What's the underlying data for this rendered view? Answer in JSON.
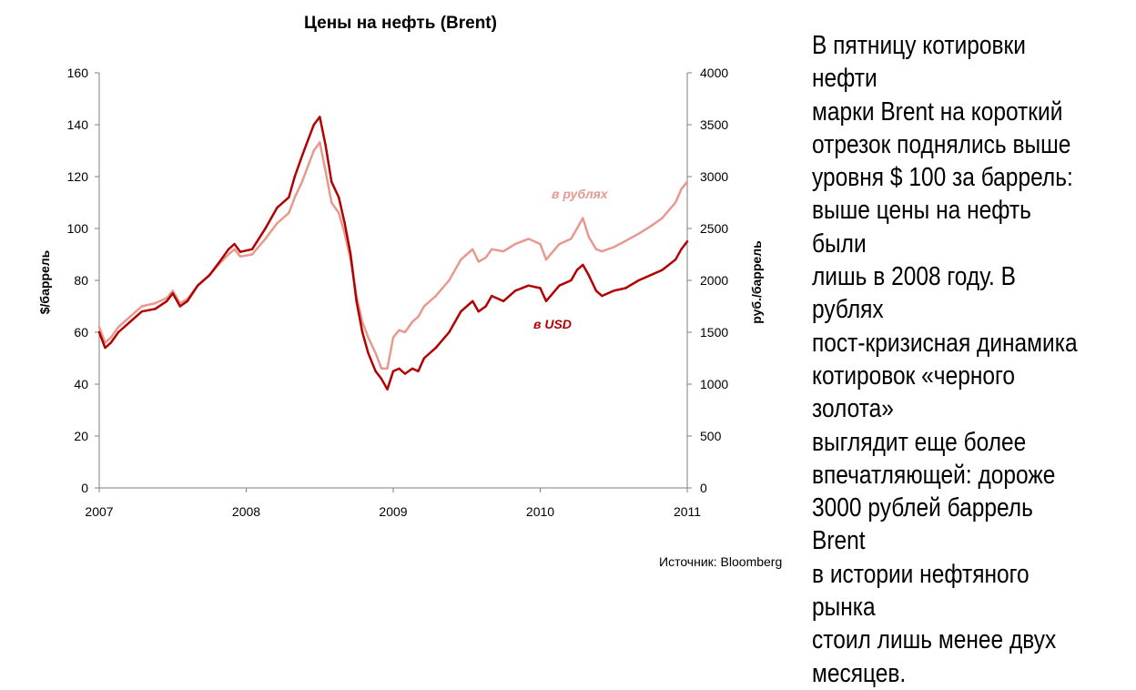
{
  "chart_data": {
    "type": "line",
    "title": "Цены на нефть (Brent)",
    "ylabel_left": "$/баррель",
    "ylabel_right": "руб./баррель",
    "ylim_left": [
      0,
      160
    ],
    "ylim_right": [
      0,
      4000
    ],
    "yticks_left": [
      "0",
      "20",
      "40",
      "60",
      "80",
      "100",
      "120",
      "140",
      "160"
    ],
    "yticks_right": [
      "0",
      "500",
      "1000",
      "1500",
      "2000",
      "2500",
      "3000",
      "3500",
      "4000"
    ],
    "xlim": [
      2007,
      2011
    ],
    "xticks": [
      "2007",
      "2008",
      "2009",
      "2010",
      "2011"
    ],
    "grid": false,
    "series": [
      {
        "name": "в USD",
        "axis": "left",
        "color": "#b30000",
        "x": [
          2007.0,
          2007.04,
          2007.08,
          2007.13,
          2007.21,
          2007.29,
          2007.38,
          2007.46,
          2007.5,
          2007.55,
          2007.6,
          2007.67,
          2007.75,
          2007.83,
          2007.88,
          2007.92,
          2007.96,
          2008.04,
          2008.13,
          2008.21,
          2008.29,
          2008.33,
          2008.38,
          2008.42,
          2008.46,
          2008.5,
          2008.54,
          2008.58,
          2008.63,
          2008.67,
          2008.71,
          2008.75,
          2008.79,
          2008.83,
          2008.88,
          2008.92,
          2008.96,
          2009.0,
          2009.04,
          2009.08,
          2009.13,
          2009.17,
          2009.21,
          2009.29,
          2009.38,
          2009.46,
          2009.5,
          2009.54,
          2009.58,
          2009.63,
          2009.67,
          2009.75,
          2009.83,
          2009.92,
          2010.0,
          2010.04,
          2010.13,
          2010.21,
          2010.25,
          2010.29,
          2010.33,
          2010.38,
          2010.42,
          2010.5,
          2010.58,
          2010.67,
          2010.75,
          2010.83,
          2010.92,
          2010.96,
          2011.0
        ],
        "values": [
          60,
          54,
          56,
          60,
          64,
          68,
          69,
          72,
          75,
          70,
          72,
          78,
          82,
          88,
          92,
          94,
          91,
          92,
          100,
          108,
          112,
          120,
          128,
          134,
          140,
          143,
          132,
          118,
          112,
          102,
          90,
          72,
          60,
          52,
          45,
          42,
          38,
          45,
          46,
          44,
          46,
          45,
          50,
          54,
          60,
          68,
          70,
          72,
          68,
          70,
          74,
          72,
          76,
          78,
          77,
          72,
          78,
          80,
          84,
          86,
          82,
          76,
          74,
          76,
          77,
          80,
          82,
          84,
          88,
          92,
          95
        ]
      },
      {
        "name": "в рублях",
        "axis": "right",
        "color": "#e8998f",
        "x": [
          2007.0,
          2007.04,
          2007.08,
          2007.13,
          2007.21,
          2007.29,
          2007.38,
          2007.46,
          2007.5,
          2007.55,
          2007.6,
          2007.67,
          2007.75,
          2007.83,
          2007.88,
          2007.92,
          2007.96,
          2008.04,
          2008.13,
          2008.21,
          2008.29,
          2008.33,
          2008.38,
          2008.42,
          2008.46,
          2008.5,
          2008.54,
          2008.58,
          2008.63,
          2008.67,
          2008.71,
          2008.75,
          2008.79,
          2008.83,
          2008.88,
          2008.92,
          2008.96,
          2009.0,
          2009.04,
          2009.08,
          2009.13,
          2009.17,
          2009.21,
          2009.29,
          2009.38,
          2009.46,
          2009.5,
          2009.54,
          2009.58,
          2009.63,
          2009.67,
          2009.75,
          2009.83,
          2009.92,
          2010.0,
          2010.04,
          2010.13,
          2010.21,
          2010.25,
          2010.29,
          2010.33,
          2010.38,
          2010.42,
          2010.5,
          2010.58,
          2010.67,
          2010.75,
          2010.83,
          2010.92,
          2010.96,
          2011.0
        ],
        "values": [
          1550,
          1400,
          1450,
          1550,
          1650,
          1750,
          1780,
          1830,
          1900,
          1780,
          1820,
          1950,
          2050,
          2180,
          2250,
          2300,
          2230,
          2250,
          2400,
          2550,
          2650,
          2800,
          2950,
          3100,
          3250,
          3330,
          3050,
          2750,
          2650,
          2450,
          2200,
          1850,
          1600,
          1450,
          1300,
          1150,
          1150,
          1450,
          1520,
          1500,
          1600,
          1650,
          1750,
          1850,
          2000,
          2200,
          2250,
          2300,
          2180,
          2220,
          2300,
          2280,
          2350,
          2400,
          2350,
          2200,
          2350,
          2400,
          2500,
          2600,
          2420,
          2300,
          2280,
          2320,
          2380,
          2450,
          2520,
          2600,
          2750,
          2880,
          2950
        ]
      }
    ],
    "annotations": [
      {
        "text": "в рублях",
        "series": "в рублях"
      },
      {
        "text": "в USD",
        "series": "в USD"
      }
    ]
  },
  "commentary": {
    "lines": [
      "В пятницу котировки нефти",
      "марки Brent на короткий",
      "отрезок поднялись выше",
      "уровня $ 100 за баррель:",
      "выше цены на нефть были",
      "лишь в 2008 году. В рублях",
      "пост-кризисная динамика",
      "котировок «черного золота»",
      "выглядит еще более",
      "впечатляющей: дороже",
      "3000 рублей баррель Brent",
      "в истории нефтяного рынка",
      "стоил лишь менее двух",
      "месяцев."
    ]
  },
  "source": "Источник: Bloomberg"
}
